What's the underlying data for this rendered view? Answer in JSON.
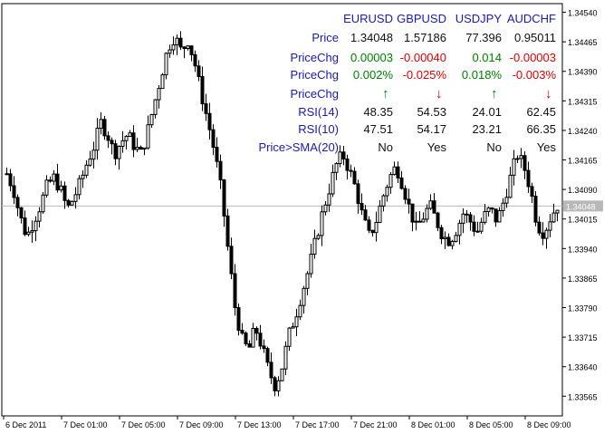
{
  "chart_data": {
    "type": "candlestick",
    "symbol_current_price": "1.34048",
    "y_ticks": [
      "1.34540",
      "1.34465",
      "1.34390",
      "1.34315",
      "1.34240",
      "1.34165",
      "1.34090",
      "1.34015",
      "1.33940",
      "1.33865",
      "1.33790",
      "1.33715",
      "1.33640",
      "1.33565"
    ],
    "ylim": [
      1.33515,
      1.34562
    ],
    "x_ticks": [
      "6 Dec 2011",
      "7 Dec 01:00",
      "7 Dec 05:00",
      "7 Dec 09:00",
      "7 Dec 13:00",
      "7 Dec 17:00",
      "7 Dec 21:00",
      "8 Dec 01:00",
      "8 Dec 05:00",
      "8 Dec 09:00"
    ],
    "bid_line": 1.34048,
    "price_path": [
      1.3413,
      1.3409,
      1.3402,
      1.3397,
      1.3401,
      1.3405,
      1.341,
      1.3412,
      1.3409,
      1.3404,
      1.3407,
      1.3411,
      1.3416,
      1.342,
      1.3426,
      1.3423,
      1.3418,
      1.3421,
      1.3423,
      1.342,
      1.3418,
      1.3424,
      1.3431,
      1.3438,
      1.3445,
      1.3448,
      1.3444,
      1.3447,
      1.3441,
      1.3433,
      1.3426,
      1.3418,
      1.3408,
      1.3393,
      1.3379,
      1.3371,
      1.3368,
      1.3374,
      1.3369,
      1.3363,
      1.3359,
      1.3364,
      1.3372,
      1.3377,
      1.3383,
      1.3389,
      1.3396,
      1.3403,
      1.3409,
      1.3415,
      1.3418,
      1.3414,
      1.3409,
      1.3402,
      1.3397,
      1.3401,
      1.3407,
      1.3412,
      1.3415,
      1.341,
      1.3404,
      1.3399,
      1.3402,
      1.3405,
      1.3401,
      1.3397,
      1.3396,
      1.3399,
      1.3403,
      1.3401,
      1.3398,
      1.3402,
      1.3404,
      1.3401,
      1.3406,
      1.3412,
      1.3418,
      1.3415,
      1.3409,
      1.34,
      1.3398,
      1.3402,
      1.3405
    ]
  },
  "panel": {
    "headers": [
      "EURUSD",
      "GBPUSD",
      "USDJPY",
      "AUDCHF"
    ],
    "rows": [
      {
        "label": "Price",
        "cells": [
          "1.34048",
          "1.57186",
          "77.396",
          "0.95011"
        ],
        "colors": [
          "#111111",
          "#111111",
          "#111111",
          "#111111"
        ]
      },
      {
        "label": "PriceChg",
        "cells": [
          "0.00003",
          "-0.00040",
          "0.014",
          "-0.00003"
        ],
        "colors": [
          "#008000",
          "#e00000",
          "#008000",
          "#e00000"
        ]
      },
      {
        "label": "PriceChg",
        "cells": [
          "0.002%",
          "-0.025%",
          "0.018%",
          "-0.003%"
        ],
        "colors": [
          "#008000",
          "#e00000",
          "#008000",
          "#e00000"
        ]
      },
      {
        "label": "PriceChg",
        "arrows": [
          "up",
          "down",
          "up",
          "down"
        ]
      },
      {
        "label": "RSI(14)",
        "cells": [
          "48.35",
          "54.53",
          "24.01",
          "62.45"
        ],
        "colors": [
          "#111111",
          "#111111",
          "#111111",
          "#111111"
        ]
      },
      {
        "label": "RSI(10)",
        "cells": [
          "47.51",
          "54.17",
          "23.21",
          "66.35"
        ],
        "colors": [
          "#111111",
          "#111111",
          "#111111",
          "#111111"
        ]
      },
      {
        "label": "Price>SMA(20)",
        "cells": [
          "No",
          "Yes",
          "No",
          "Yes"
        ],
        "colors": [
          "#111111",
          "#111111",
          "#111111",
          "#111111"
        ]
      }
    ],
    "arrow_colors": {
      "up": "#008000",
      "down": "#e00000"
    }
  }
}
